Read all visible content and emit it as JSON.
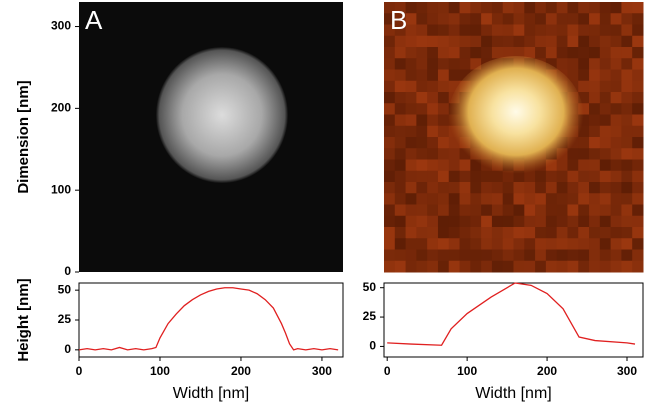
{
  "chart_data": [
    {
      "type": "image",
      "label": "A",
      "ylabel": "Dimension [nm]",
      "ylim": [
        0,
        330
      ],
      "yticks": [
        0,
        100,
        200,
        300
      ]
    },
    {
      "type": "image",
      "label": "B"
    },
    {
      "type": "line",
      "ylabel": "Height [nm]",
      "xlabel": "Width [nm]",
      "xlim": [
        0,
        326
      ],
      "xticks": [
        0,
        100,
        200,
        300
      ],
      "ylim": [
        -6,
        56
      ],
      "yticks": [
        0,
        25,
        50
      ],
      "series": [
        {
          "color": "#e02020",
          "x": [
            0,
            10,
            20,
            30,
            40,
            50,
            60,
            70,
            80,
            90,
            95,
            100,
            110,
            120,
            130,
            140,
            150,
            160,
            170,
            180,
            190,
            200,
            210,
            220,
            230,
            240,
            250,
            255,
            260,
            265,
            270,
            280,
            290,
            300,
            310,
            320
          ],
          "values": [
            0,
            1,
            0,
            1,
            0,
            2,
            0,
            1,
            0,
            1,
            2,
            10,
            22,
            30,
            37,
            42,
            46,
            49,
            51,
            52,
            52,
            51,
            50,
            47,
            42,
            35,
            22,
            14,
            5,
            0,
            1,
            0,
            1,
            0,
            1,
            0
          ]
        }
      ]
    },
    {
      "type": "line",
      "xlabel": "Width [nm]",
      "xlim": [
        -4,
        320
      ],
      "xticks": [
        0,
        100,
        200,
        300
      ],
      "ylim": [
        -9,
        54
      ],
      "yticks": [
        0,
        25,
        50
      ],
      "series": [
        {
          "color": "#e02020",
          "x": [
            0,
            30,
            68,
            80,
            100,
            130,
            160,
            180,
            200,
            220,
            240,
            260,
            300,
            310
          ],
          "values": [
            3,
            2,
            1,
            15,
            28,
            42,
            54,
            52,
            45,
            32,
            8,
            5,
            3,
            2
          ]
        }
      ]
    }
  ]
}
